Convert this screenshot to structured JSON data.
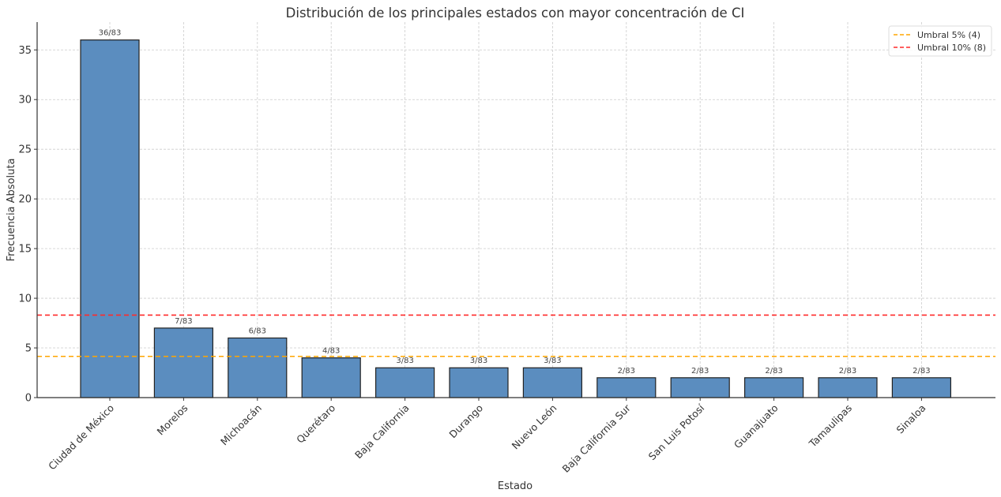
{
  "chart_data": {
    "type": "bar",
    "title": "Distribución de los principales estados con mayor concentración de CI",
    "xlabel": "Estado",
    "ylabel": "Frecuencia Absoluta",
    "ylim": [
      0,
      37.8
    ],
    "yticks": [
      0,
      5,
      10,
      15,
      20,
      25,
      30,
      35
    ],
    "grid": true,
    "categories": [
      "Ciudad de México",
      "Morelos",
      "Michoacán",
      "Querétaro",
      "Baja California",
      "Durango",
      "Nuevo León",
      "Baja California Sur",
      "San Luis Potosí",
      "Guanajuato",
      "Tamaulipas",
      "Sinaloa"
    ],
    "values": [
      36,
      7,
      6,
      4,
      3,
      3,
      3,
      2,
      2,
      2,
      2,
      2
    ],
    "data_labels": [
      "36/83",
      "7/83",
      "6/83",
      "4/83",
      "3/83",
      "3/83",
      "3/83",
      "2/83",
      "2/83",
      "2/83",
      "2/83",
      "2/83"
    ],
    "bar_color": "#5b8dbf",
    "bar_edge_color": "#222222",
    "thresholds": [
      {
        "label": "Umbral 5% (4)",
        "value": 4.15,
        "color": "#ffa500"
      },
      {
        "label": "Umbral 10% (8)",
        "value": 8.3,
        "color": "#ff2a2a"
      }
    ],
    "legend_position": "top-right"
  }
}
